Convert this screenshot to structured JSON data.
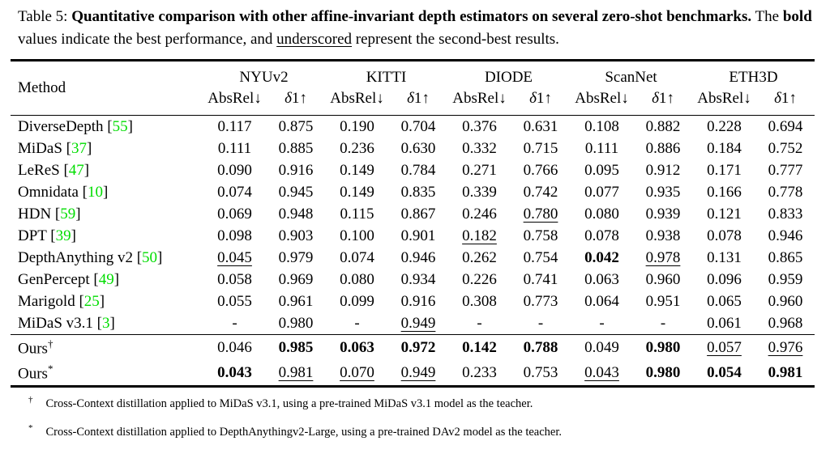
{
  "caption": {
    "label": "Table 5:",
    "bold_title": "Quantitative comparison with other affine-invariant depth estimators on several zero-shot benchmarks.",
    "after_title": "The",
    "bold_word": "bold",
    "mid_text": "values indicate the best performance, and",
    "underlined_word": "underscored",
    "end_text": "represent the second-best results."
  },
  "colors": {
    "citation_green": "#00DD00",
    "text": "#000000",
    "background": "#FFFFFF"
  },
  "table": {
    "method_header": "Method",
    "groups": [
      "NYUv2",
      "KITTI",
      "DIODE",
      "ScanNet",
      "ETH3D"
    ],
    "subheaders": {
      "absrel": "AbsRel↓",
      "delta": "δ1↑"
    },
    "rows": [
      {
        "method": "DiverseDepth",
        "cite": "55",
        "values": [
          "0.117",
          "0.875",
          "0.190",
          "0.704",
          "0.376",
          "0.631",
          "0.108",
          "0.882",
          "0.228",
          "0.694"
        ],
        "styles": [
          "n",
          "n",
          "n",
          "n",
          "n",
          "n",
          "n",
          "n",
          "n",
          "n"
        ]
      },
      {
        "method": "MiDaS",
        "cite": "37",
        "values": [
          "0.111",
          "0.885",
          "0.236",
          "0.630",
          "0.332",
          "0.715",
          "0.111",
          "0.886",
          "0.184",
          "0.752"
        ],
        "styles": [
          "n",
          "n",
          "n",
          "n",
          "n",
          "n",
          "n",
          "n",
          "n",
          "n"
        ]
      },
      {
        "method": "LeReS",
        "cite": "47",
        "values": [
          "0.090",
          "0.916",
          "0.149",
          "0.784",
          "0.271",
          "0.766",
          "0.095",
          "0.912",
          "0.171",
          "0.777"
        ],
        "styles": [
          "n",
          "n",
          "n",
          "n",
          "n",
          "n",
          "n",
          "n",
          "n",
          "n"
        ]
      },
      {
        "method": "Omnidata",
        "cite": "10",
        "values": [
          "0.074",
          "0.945",
          "0.149",
          "0.835",
          "0.339",
          "0.742",
          "0.077",
          "0.935",
          "0.166",
          "0.778"
        ],
        "styles": [
          "n",
          "n",
          "n",
          "n",
          "n",
          "n",
          "n",
          "n",
          "n",
          "n"
        ]
      },
      {
        "method": "HDN",
        "cite": "59",
        "values": [
          "0.069",
          "0.948",
          "0.115",
          "0.867",
          "0.246",
          "0.780",
          "0.080",
          "0.939",
          "0.121",
          "0.833"
        ],
        "styles": [
          "n",
          "n",
          "n",
          "n",
          "n",
          "u",
          "n",
          "n",
          "n",
          "n"
        ]
      },
      {
        "method": "DPT",
        "cite": "39",
        "values": [
          "0.098",
          "0.903",
          "0.100",
          "0.901",
          "0.182",
          "0.758",
          "0.078",
          "0.938",
          "0.078",
          "0.946"
        ],
        "styles": [
          "n",
          "n",
          "n",
          "n",
          "u",
          "n",
          "n",
          "n",
          "n",
          "n"
        ]
      },
      {
        "method": "DepthAnything v2",
        "cite": "50",
        "values": [
          "0.045",
          "0.979",
          "0.074",
          "0.946",
          "0.262",
          "0.754",
          "0.042",
          "0.978",
          "0.131",
          "0.865"
        ],
        "styles": [
          "u",
          "n",
          "n",
          "n",
          "n",
          "n",
          "b",
          "u",
          "n",
          "n"
        ]
      },
      {
        "method": "GenPercept",
        "cite": "49",
        "values": [
          "0.058",
          "0.969",
          "0.080",
          "0.934",
          "0.226",
          "0.741",
          "0.063",
          "0.960",
          "0.096",
          "0.959"
        ],
        "styles": [
          "n",
          "n",
          "n",
          "n",
          "n",
          "n",
          "n",
          "n",
          "n",
          "n"
        ]
      },
      {
        "method": "Marigold",
        "cite": "25",
        "values": [
          "0.055",
          "0.961",
          "0.099",
          "0.916",
          "0.308",
          "0.773",
          "0.064",
          "0.951",
          "0.065",
          "0.960"
        ],
        "styles": [
          "n",
          "n",
          "n",
          "n",
          "n",
          "n",
          "n",
          "n",
          "n",
          "n"
        ]
      },
      {
        "method": "MiDaS v3.1",
        "cite": "3",
        "values": [
          "-",
          "0.980",
          "-",
          "0.949",
          "-",
          "-",
          "-",
          "-",
          "0.061",
          "0.968"
        ],
        "styles": [
          "n",
          "n",
          "n",
          "u",
          "n",
          "n",
          "n",
          "n",
          "n",
          "n"
        ]
      }
    ],
    "ours_rows": [
      {
        "method": "Ours",
        "marker": "†",
        "values": [
          "0.046",
          "0.985",
          "0.063",
          "0.972",
          "0.142",
          "0.788",
          "0.049",
          "0.980",
          "0.057",
          "0.976"
        ],
        "styles": [
          "n",
          "b",
          "b",
          "b",
          "b",
          "b",
          "n",
          "b",
          "u",
          "u"
        ]
      },
      {
        "method": "Ours",
        "marker": "*",
        "values": [
          "0.043",
          "0.981",
          "0.070",
          "0.949",
          "0.233",
          "0.753",
          "0.043",
          "0.980",
          "0.054",
          "0.981"
        ],
        "styles": [
          "b",
          "u",
          "u",
          "u",
          "n",
          "n",
          "u",
          "b",
          "b",
          "b"
        ]
      }
    ]
  },
  "footnotes": [
    {
      "marker": "†",
      "text": "Cross-Context distillation applied to MiDaS v3.1, using a pre-trained MiDaS v3.1 model as the teacher."
    },
    {
      "marker": "*",
      "text": "Cross-Context distillation applied to DepthAnythingv2-Large, using a pre-trained DAv2 model as the teacher."
    }
  ]
}
